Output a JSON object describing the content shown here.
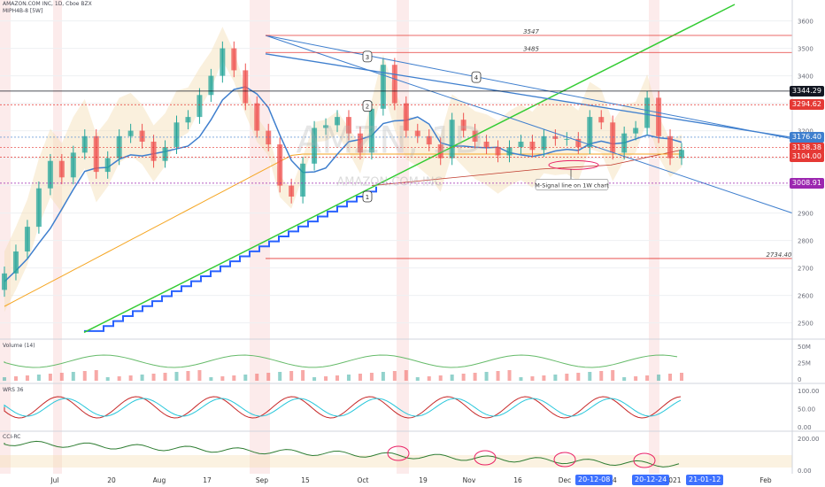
{
  "header": {
    "symbol_line": "AMAZON.COM INC, 1D, Cboe BZX",
    "indicator_line": "MIPH4B-8 [5W]"
  },
  "watermark": {
    "ticker": "AMZN, 1D",
    "name": "AMAZON.COM INC"
  },
  "colors": {
    "up": "#26a69a",
    "down": "#ef5350",
    "green_line": "#33cc33",
    "blue_line": "#3f7fce",
    "red_level": "#e53935",
    "orange_ma": "#f5a623",
    "highlight": "#f7c5c5"
  },
  "chart_data": [
    {
      "type": "candlestick",
      "title": "AMAZON.COM INC, 1D, Cboe BZX",
      "x_labels": [
        "Jul",
        "20",
        "Aug",
        "17",
        "Sep",
        "15",
        "Oct",
        "19",
        "Nov",
        "16",
        "Dec",
        "14",
        "2021",
        "Feb"
      ],
      "y_ticks": [
        2500,
        2600,
        2700,
        2800,
        2900,
        3000,
        3100,
        3200,
        3300,
        3400,
        3500,
        3600
      ],
      "ylim": [
        2460,
        3660
      ],
      "levels": [
        {
          "label": "3547",
          "value": 3547
        },
        {
          "label": "3485",
          "value": 3485
        },
        {
          "label": "2734.40",
          "value": 2734.4
        }
      ],
      "price_tags": [
        {
          "label": "3344.29",
          "value": 3344.29,
          "color": "#131722"
        },
        {
          "label": "3294.62",
          "value": 3294.62,
          "color": "#e53935"
        },
        {
          "label": "3176.40",
          "value": 3176.4,
          "color": "#3f7fce"
        },
        {
          "label": "3138.38",
          "value": 3138.38,
          "color": "#e53935"
        },
        {
          "label": "3104.00",
          "value": 3104.0,
          "color": "#e53935"
        },
        {
          "label": "3008.91",
          "value": 3008.91,
          "color": "#9c27b0"
        }
      ],
      "annotations": [
        {
          "label": "1",
          "date": "Sep 23",
          "value": 2960
        },
        {
          "label": "2",
          "date": "Oct 2",
          "value": 3290
        },
        {
          "label": "3",
          "date": "Oct 2",
          "value": 3470
        },
        {
          "label": "4",
          "date": "Oct 29",
          "value": 3395
        }
      ],
      "callout": "M-Signal line on 1W chart",
      "closes": [
        2680,
        2760,
        2850,
        2990,
        3090,
        3030,
        3120,
        3180,
        3050,
        3100,
        3180,
        3200,
        3160,
        3090,
        3140,
        3230,
        3250,
        3330,
        3400,
        3500,
        3420,
        3300,
        3200,
        3150,
        3000,
        2960,
        3080,
        3210,
        3220,
        3250,
        3190,
        3120,
        3280,
        3440,
        3300,
        3200,
        3180,
        3150,
        3100,
        3240,
        3200,
        3160,
        3140,
        3110,
        3140,
        3160,
        3130,
        3180,
        3170,
        3170,
        3140,
        3250,
        3230,
        3120,
        3190,
        3210,
        3320,
        3180,
        3100,
        3130
      ]
    },
    {
      "type": "area",
      "title": "Volume (14)",
      "y_ticks_labels": [
        "50M",
        "25M",
        "0"
      ]
    },
    {
      "type": "line",
      "title": "WRS 36",
      "y_ticks_labels": [
        "100.00",
        "50.00",
        "0.00"
      ]
    },
    {
      "type": "line",
      "title": "CCI-RC",
      "y_ticks_labels": [
        "200.00",
        "0.00"
      ]
    }
  ],
  "date_tags": [
    "20-12-08",
    "20-12-24",
    "21-01-12"
  ]
}
